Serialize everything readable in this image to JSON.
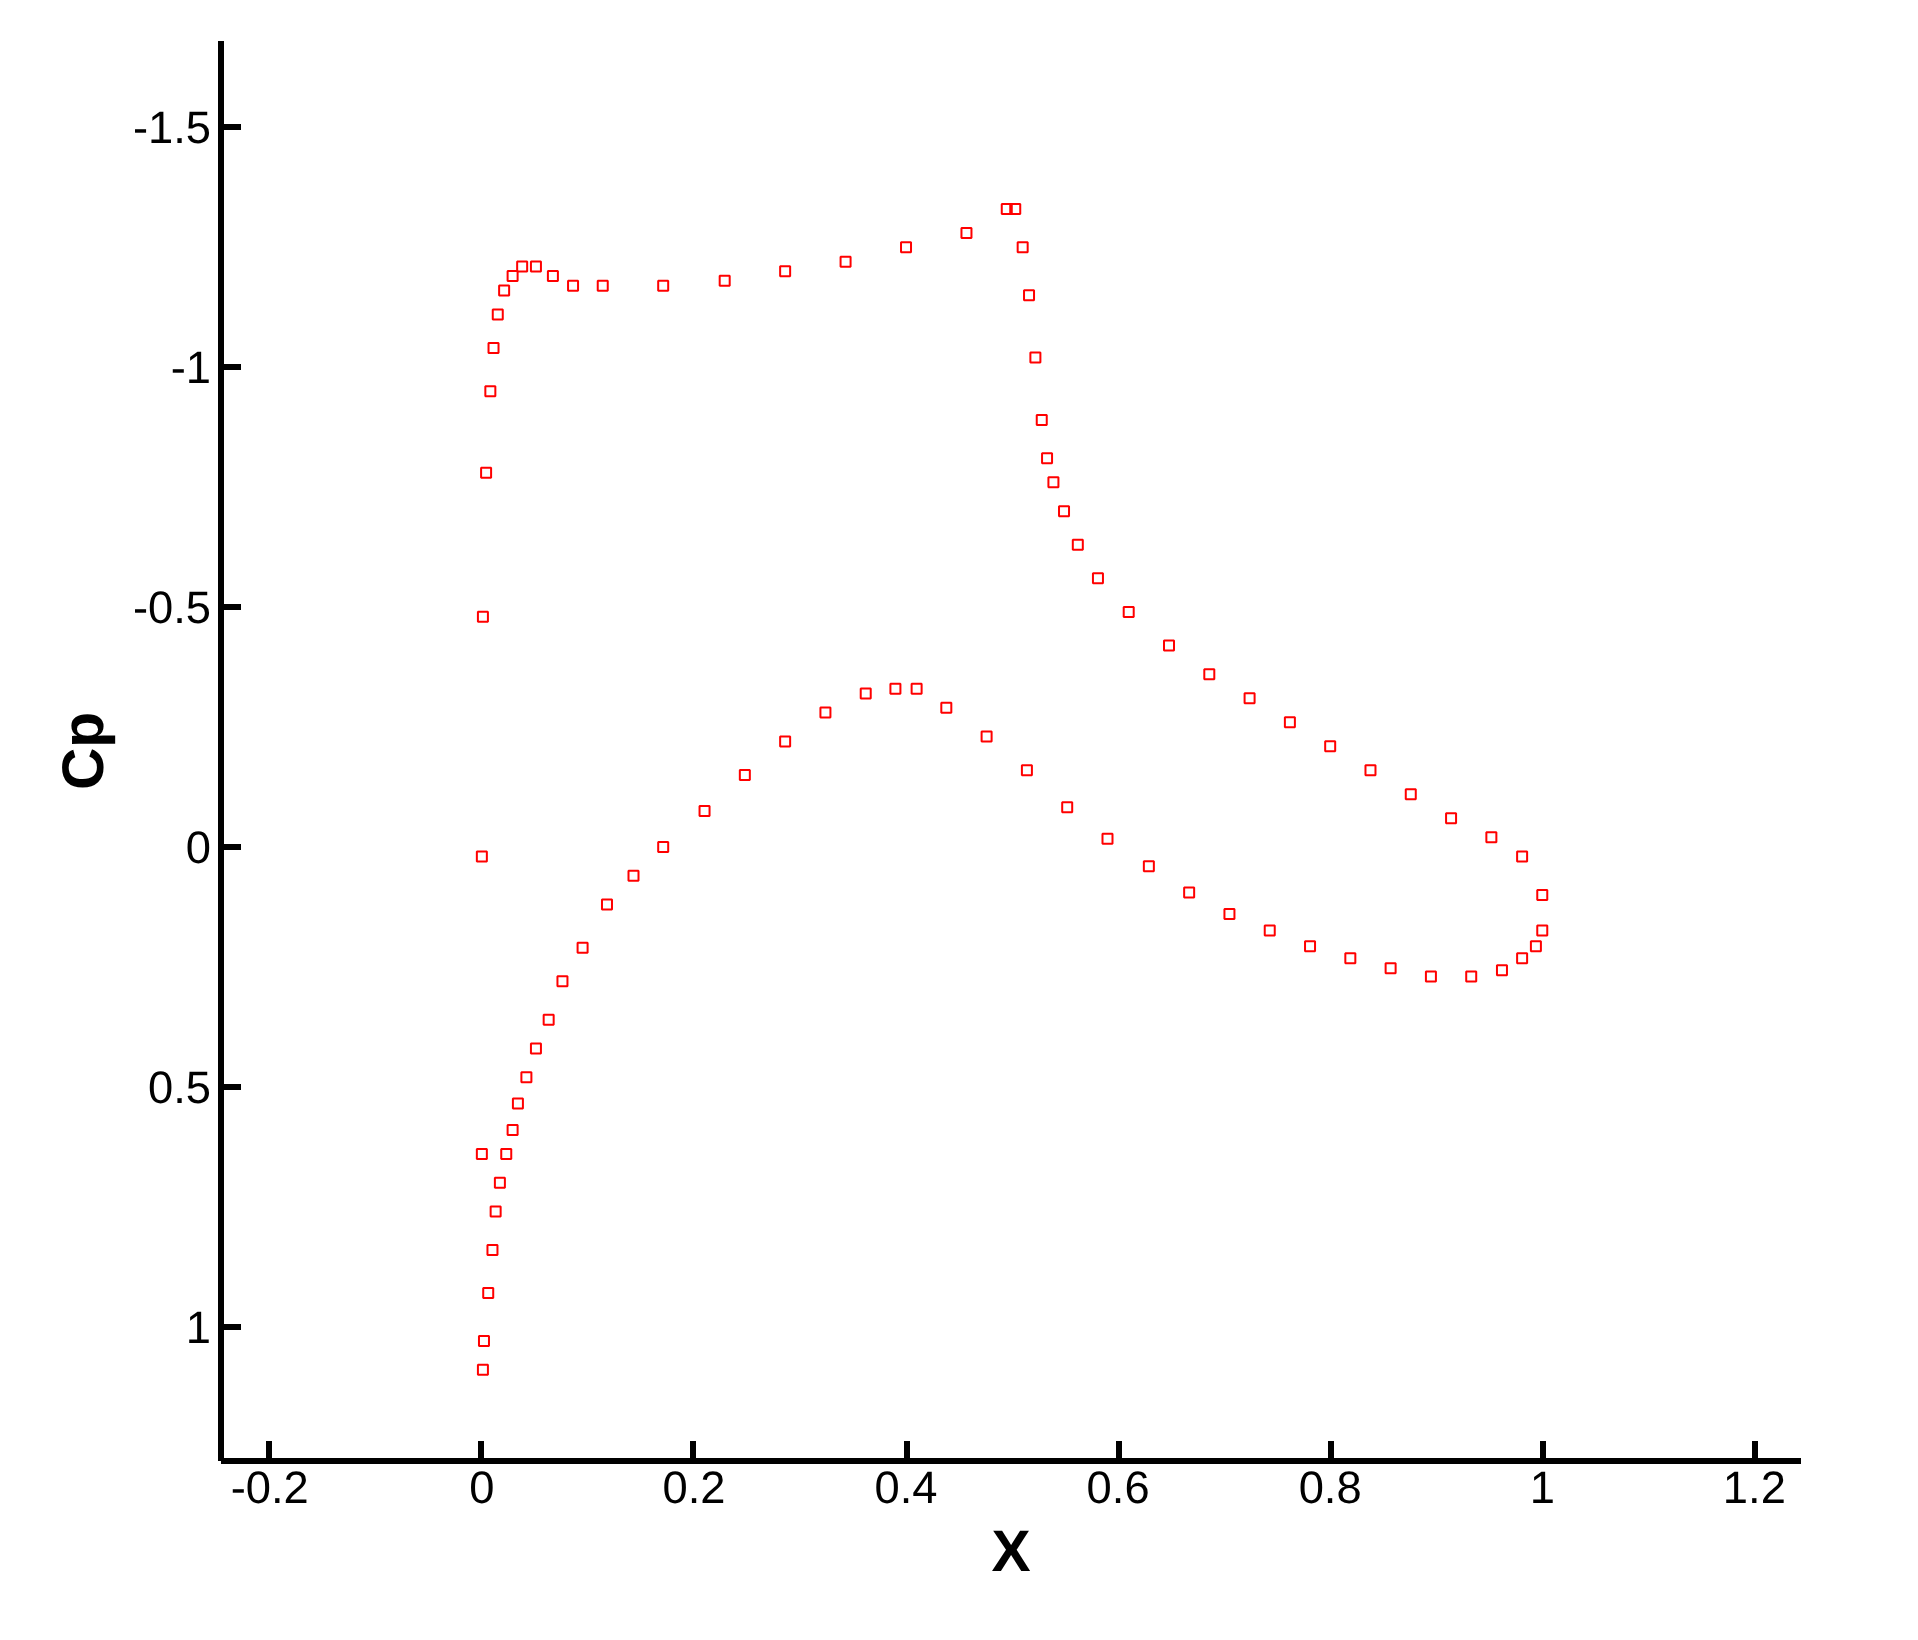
{
  "chart_data": {
    "type": "scatter",
    "xlabel": "X",
    "ylabel": "Cp",
    "marker": "square",
    "xlim": [
      -0.246,
      1.244
    ],
    "ylim": [
      1.28,
      -1.68
    ],
    "xticks": [
      -0.2,
      0,
      0.2,
      0.4,
      0.6,
      0.8,
      1,
      1.2
    ],
    "yticks": [
      -1.5,
      -1,
      -0.5,
      0,
      0.5,
      1
    ],
    "series": [
      {
        "color": "#ff0000",
        "x": [
          0,
          0.001,
          0.004,
          0.008,
          0.011,
          0.015,
          0.021,
          0.029,
          0.038,
          0.051,
          0.067,
          0.086,
          0.114,
          0.171,
          0.229,
          0.286,
          0.343,
          0.4,
          0.457,
          0.495,
          0.503,
          0.51,
          0.516,
          0.522,
          0.528,
          0.533,
          0.539,
          0.549,
          0.562,
          0.581,
          0.61,
          0.648,
          0.686,
          0.724,
          0.762,
          0.8,
          0.838,
          0.876,
          0.914,
          0.952,
          0.981,
          1.0
        ],
        "values": [
          0.02,
          -0.48,
          -0.78,
          -0.95,
          -1.04,
          -1.11,
          -1.16,
          -1.19,
          -1.21,
          -1.21,
          -1.19,
          -1.17,
          -1.17,
          -1.17,
          -1.18,
          -1.2,
          -1.22,
          -1.25,
          -1.28,
          -1.33,
          -1.33,
          -1.25,
          -1.15,
          -1.02,
          -0.89,
          -0.81,
          -0.76,
          -0.7,
          -0.63,
          -0.56,
          -0.49,
          -0.42,
          -0.36,
          -0.31,
          -0.26,
          -0.21,
          -0.16,
          -0.11,
          -0.06,
          -0.02,
          0.02,
          0.1
        ]
      },
      {
        "color": "#ff0000",
        "x": [
          0,
          0.001,
          0.002,
          0.006,
          0.01,
          0.013,
          0.017,
          0.023,
          0.029,
          0.034,
          0.042,
          0.051,
          0.063,
          0.076,
          0.095,
          0.118,
          0.143,
          0.171,
          0.21,
          0.248,
          0.286,
          0.324,
          0.362,
          0.39,
          0.41,
          0.438,
          0.476,
          0.514,
          0.552,
          0.59,
          0.629,
          0.667,
          0.705,
          0.743,
          0.781,
          0.819,
          0.857,
          0.895,
          0.933,
          0.962,
          0.981,
          0.994,
          1.0
        ],
        "values": [
          0.64,
          1.09,
          1.03,
          0.93,
          0.84,
          0.76,
          0.7,
          0.64,
          0.59,
          0.535,
          0.48,
          0.42,
          0.36,
          0.28,
          0.21,
          0.12,
          0.06,
          0,
          -0.075,
          -0.15,
          -0.22,
          -0.28,
          -0.32,
          -0.33,
          -0.33,
          -0.29,
          -0.23,
          -0.16,
          -0.083,
          -0.017,
          0.04,
          0.095,
          0.14,
          0.174,
          0.207,
          0.232,
          0.253,
          0.27,
          0.27,
          0.257,
          0.232,
          0.207,
          0.174
        ]
      }
    ]
  }
}
